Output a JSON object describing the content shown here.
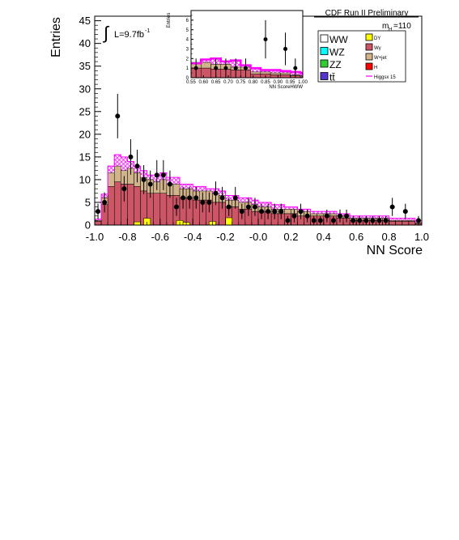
{
  "header": {
    "experiment": "CDF Run II Preliminary",
    "mass_label_main": "m",
    "mass_label_sub": "H",
    "mass_label_value": "=110",
    "lumi_integral": "∫",
    "lumi_text": "L=9.7fb",
    "lumi_exponent": "-1"
  },
  "legend": {
    "left": [
      {
        "label": "WW",
        "color": "#ffffff"
      },
      {
        "label": "WZ",
        "color": "#00ffff"
      },
      {
        "label": "ZZ",
        "color": "#33cc33"
      },
      {
        "label": "tt̄",
        "color": "#5533cc"
      }
    ],
    "right": [
      {
        "label": "DY",
        "color": "#ffff00"
      },
      {
        "label": "Wγ",
        "color": "#cc5566"
      },
      {
        "label": "W+jet",
        "color": "#d2b48c"
      },
      {
        "label": "H",
        "color": "#ff0000"
      },
      {
        "label": "Higgsx 15",
        "color": "#ff00ff"
      }
    ]
  },
  "chart_data": [
    {
      "type": "bar",
      "name": "main",
      "xlabel": "NN Score",
      "ylabel": "Entries",
      "xlim": [
        -1.0,
        1.0
      ],
      "ylim": [
        0,
        46
      ],
      "xticks": [
        "-1.0",
        "-0.8",
        "-0.6",
        "-0.4",
        "-0.2",
        "-0.0",
        "0.2",
        "0.4",
        "0.6",
        "0.8",
        "1.0"
      ],
      "yticks": [
        "0",
        "5",
        "10",
        "15",
        "20",
        "25",
        "30",
        "35",
        "40",
        "45"
      ],
      "bin_edges_start": -1.0,
      "bin_width": 0.04,
      "background_stack_total": [
        1,
        6,
        11.5,
        13,
        12,
        12.5,
        11.5,
        10.5,
        10,
        9.5,
        10,
        9,
        9,
        8,
        8,
        7.5,
        7.5,
        7.5,
        7,
        6.5,
        5.5,
        5.5,
        5,
        5,
        4.5,
        4,
        4,
        3.5,
        3.5,
        3.5,
        3.5,
        3,
        3,
        2.5,
        2.5,
        2.5,
        2.5,
        2,
        2,
        1.5,
        1.5,
        1.5,
        1.5,
        1.5,
        1.5,
        1,
        1,
        1,
        1,
        0.5
      ],
      "w_gamma": [
        0.8,
        4.5,
        8.5,
        9.5,
        9,
        9,
        8.5,
        7.5,
        7,
        7,
        7,
        6.5,
        6.5,
        6,
        6,
        5.5,
        5.5,
        5.5,
        5,
        5,
        4,
        4,
        3.5,
        3.5,
        3,
        3,
        3,
        2.5,
        2.5,
        2.5,
        2.5,
        2,
        2,
        2,
        2,
        2,
        2,
        1.5,
        1.5,
        1,
        1,
        1,
        1,
        1,
        1,
        0.8,
        0.8,
        0.8,
        0.8,
        0.3
      ],
      "w_jet": [
        0.1,
        1,
        2.5,
        3,
        2.5,
        3,
        2.5,
        2.5,
        2.5,
        2,
        2.5,
        2,
        2,
        1.5,
        1.5,
        1.5,
        1.5,
        1.5,
        1.5,
        1.2,
        1.2,
        1.2,
        1.2,
        1.2,
        1.2,
        0.8,
        0.8,
        0.8,
        0.8,
        0.8,
        0.8,
        0.8,
        0.8,
        0.4,
        0.4,
        0.4,
        0.4,
        0.4,
        0.4,
        0.4,
        0.4,
        0.4,
        0.4,
        0.4,
        0.4,
        0.2,
        0.2,
        0.2,
        0.2,
        0.2
      ],
      "dy_bins": [
        {
          "x_low": -0.76,
          "x_high": -0.72,
          "value": 0.7
        },
        {
          "x_low": -0.7,
          "x_high": -0.66,
          "value": 1.5
        },
        {
          "x_low": -0.5,
          "x_high": -0.46,
          "value": 1.0
        },
        {
          "x_low": -0.46,
          "x_high": -0.42,
          "value": 0.6
        },
        {
          "x_low": -0.3,
          "x_high": -0.26,
          "value": 0.8
        },
        {
          "x_low": -0.2,
          "x_high": -0.16,
          "value": 1.6
        }
      ],
      "higgs_x15_top": [
        1.3,
        6.8,
        13,
        15.5,
        15,
        14,
        13,
        12,
        11,
        11,
        11.5,
        10.5,
        10.5,
        9,
        9,
        8.5,
        8.5,
        8,
        8,
        7.5,
        6.5,
        6.5,
        6,
        6,
        5.5,
        5,
        5,
        4.5,
        4.5,
        4,
        4,
        3.5,
        3.5,
        3,
        3,
        3,
        3,
        2.5,
        2.5,
        2,
        2,
        2,
        2,
        2,
        2,
        1.5,
        1.5,
        1.5,
        1.5,
        1
      ],
      "data_points": [
        {
          "x": -0.98,
          "y": 3,
          "err": 1.7
        },
        {
          "x": -0.94,
          "y": 5,
          "err": 2.2
        },
        {
          "x": -0.86,
          "y": 24,
          "err": 4.9
        },
        {
          "x": -0.82,
          "y": 8,
          "err": 2.8
        },
        {
          "x": -0.78,
          "y": 15,
          "err": 3.9
        },
        {
          "x": -0.74,
          "y": 13,
          "err": 3.6
        },
        {
          "x": -0.7,
          "y": 10,
          "err": 3.2
        },
        {
          "x": -0.66,
          "y": 9,
          "err": 3.0
        },
        {
          "x": -0.62,
          "y": 11,
          "err": 3.3
        },
        {
          "x": -0.58,
          "y": 11,
          "err": 3.3
        },
        {
          "x": -0.54,
          "y": 9,
          "err": 3.0
        },
        {
          "x": -0.5,
          "y": 4,
          "err": 2.0
        },
        {
          "x": -0.46,
          "y": 6,
          "err": 2.4
        },
        {
          "x": -0.42,
          "y": 6,
          "err": 2.4
        },
        {
          "x": -0.38,
          "y": 6,
          "err": 2.4
        },
        {
          "x": -0.34,
          "y": 5,
          "err": 2.2
        },
        {
          "x": -0.3,
          "y": 5,
          "err": 2.2
        },
        {
          "x": -0.26,
          "y": 7,
          "err": 2.6
        },
        {
          "x": -0.22,
          "y": 6,
          "err": 2.4
        },
        {
          "x": -0.18,
          "y": 4,
          "err": 2.0
        },
        {
          "x": -0.14,
          "y": 6,
          "err": 2.4
        },
        {
          "x": -0.1,
          "y": 3,
          "err": 1.7
        },
        {
          "x": -0.06,
          "y": 4,
          "err": 2.0
        },
        {
          "x": -0.02,
          "y": 4,
          "err": 2.0
        },
        {
          "x": 0.02,
          "y": 3,
          "err": 1.7
        },
        {
          "x": 0.06,
          "y": 3,
          "err": 1.7
        },
        {
          "x": 0.1,
          "y": 3,
          "err": 1.7
        },
        {
          "x": 0.14,
          "y": 3,
          "err": 1.7
        },
        {
          "x": 0.18,
          "y": 1,
          "err": 1.0
        },
        {
          "x": 0.22,
          "y": 2,
          "err": 1.4
        },
        {
          "x": 0.26,
          "y": 3,
          "err": 1.7
        },
        {
          "x": 0.3,
          "y": 2,
          "err": 1.4
        },
        {
          "x": 0.34,
          "y": 1,
          "err": 1.0
        },
        {
          "x": 0.38,
          "y": 1,
          "err": 1.0
        },
        {
          "x": 0.42,
          "y": 2,
          "err": 1.4
        },
        {
          "x": 0.46,
          "y": 1,
          "err": 1.0
        },
        {
          "x": 0.5,
          "y": 2,
          "err": 1.4
        },
        {
          "x": 0.54,
          "y": 2,
          "err": 1.4
        },
        {
          "x": 0.58,
          "y": 1,
          "err": 1.0
        },
        {
          "x": 0.62,
          "y": 1,
          "err": 1.0
        },
        {
          "x": 0.66,
          "y": 1,
          "err": 1.0
        },
        {
          "x": 0.7,
          "y": 1,
          "err": 1.0
        },
        {
          "x": 0.74,
          "y": 1,
          "err": 1.0
        },
        {
          "x": 0.78,
          "y": 1,
          "err": 1.0
        },
        {
          "x": 0.82,
          "y": 4,
          "err": 2.0
        },
        {
          "x": 0.9,
          "y": 3,
          "err": 1.7
        },
        {
          "x": 0.98,
          "y": 1,
          "err": 1.0
        }
      ]
    },
    {
      "type": "bar",
      "name": "inset",
      "xlabel": "NN ScoreHWW",
      "ylabel": "Entries",
      "xlim": [
        0.55,
        1.0
      ],
      "ylim": [
        0,
        7
      ],
      "xticks": [
        "0.55",
        "0.60",
        "0.65",
        "0.70",
        "0.75",
        "0.80",
        "0.85",
        "0.90",
        "0.95",
        "1.00"
      ],
      "yticks": [
        "0",
        "1",
        "2",
        "3",
        "4",
        "5",
        "6"
      ],
      "bin_edges_start": 0.55,
      "bin_width": 0.04,
      "background_stack_total": [
        1.6,
        1.6,
        1.4,
        1.4,
        1.1,
        1.1,
        0.6,
        0.6,
        0.5,
        0.5,
        0.3,
        0.2
      ],
      "w_gamma": [
        1.0,
        1.0,
        0.9,
        0.9,
        0.8,
        0.8,
        0.4,
        0.4,
        0.3,
        0.3,
        0.2,
        0.1
      ],
      "higgs_x15_top": [
        1.5,
        1.9,
        2.0,
        1.7,
        1.8,
        1.3,
        1.0,
        0.8,
        0.8,
        0.7,
        0.6,
        0.5
      ],
      "data_points": [
        {
          "x": 0.57,
          "y": 1,
          "err": 1.0
        },
        {
          "x": 0.65,
          "y": 1,
          "err": 1.0
        },
        {
          "x": 0.69,
          "y": 1,
          "err": 1.0
        },
        {
          "x": 0.73,
          "y": 1,
          "err": 1.0
        },
        {
          "x": 0.77,
          "y": 1,
          "err": 1.0
        },
        {
          "x": 0.85,
          "y": 4,
          "err": 2.0
        },
        {
          "x": 0.93,
          "y": 3,
          "err": 1.7
        },
        {
          "x": 0.97,
          "y": 1,
          "err": 1.0
        }
      ]
    }
  ]
}
